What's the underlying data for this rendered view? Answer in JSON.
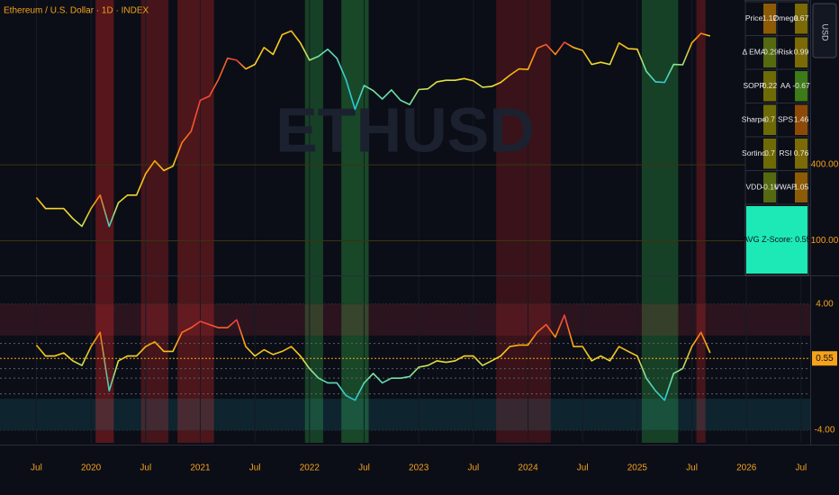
{
  "header": {
    "currency_button": "USD"
  },
  "chart_data": [
    {
      "type": "line",
      "title": "Ethereum / U.S. Dollar · 1D · INDEX",
      "watermark": "ETHUSD",
      "log_scale": true,
      "x": [
        "2019-07",
        "2019-08",
        "2019-09",
        "2019-10",
        "2019-11",
        "2019-12",
        "2020-01",
        "2020-02",
        "2020-03",
        "2020-04",
        "2020-05",
        "2020-06",
        "2020-07",
        "2020-08",
        "2020-09",
        "2020-10",
        "2020-11",
        "2020-12",
        "2021-01",
        "2021-02",
        "2021-03",
        "2021-04",
        "2021-05",
        "2021-06",
        "2021-07",
        "2021-08",
        "2021-09",
        "2021-10",
        "2021-11",
        "2021-12",
        "2022-01",
        "2022-02",
        "2022-03",
        "2022-04",
        "2022-05",
        "2022-06",
        "2022-07",
        "2022-08",
        "2022-09",
        "2022-10",
        "2022-11",
        "2022-12",
        "2023-01",
        "2023-02",
        "2023-03",
        "2023-04",
        "2023-05",
        "2023-06",
        "2023-07",
        "2023-08",
        "2023-09",
        "2023-10",
        "2023-11",
        "2023-12",
        "2024-01",
        "2024-02",
        "2024-03",
        "2024-04",
        "2024-05",
        "2024-06",
        "2024-07",
        "2024-08",
        "2024-09",
        "2024-10",
        "2024-11",
        "2024-12",
        "2025-01",
        "2025-02",
        "2025-03",
        "2025-04",
        "2025-05",
        "2025-06",
        "2025-07",
        "2025-08",
        "2025-09"
      ],
      "values": [
        220,
        180,
        180,
        180,
        150,
        130,
        180,
        230,
        130,
        200,
        230,
        230,
        340,
        430,
        360,
        390,
        600,
        740,
        1300,
        1400,
        1900,
        2800,
        2700,
        2300,
        2500,
        3400,
        3000,
        4300,
        4600,
        3700,
        2700,
        2900,
        3300,
        2800,
        1900,
        1100,
        1700,
        1550,
        1330,
        1570,
        1300,
        1200,
        1580,
        1600,
        1820,
        1870,
        1870,
        1930,
        1850,
        1650,
        1670,
        1800,
        2050,
        2300,
        2280,
        3350,
        3600,
        3000,
        3750,
        3400,
        3230,
        2500,
        2600,
        2500,
        3700,
        3330,
        3300,
        2200,
        1820,
        1800,
        2500,
        2480,
        3700,
        4400,
        4200
      ],
      "xlim": [
        "2019-03",
        "2026-08"
      ],
      "ylim": [
        54,
        8100
      ],
      "yticks": [
        {
          "value": 100,
          "label": "100.00"
        },
        {
          "value": 400,
          "label": "400.00"
        }
      ],
      "grid_color": "#3a3410",
      "shaded_ranges": [
        {
          "from": "2020-02",
          "to": "2020-03",
          "color": "rgba(178,34,34,0.45)"
        },
        {
          "from": "2020-07",
          "to": "2020-09",
          "color": "rgba(178,34,34,0.35)"
        },
        {
          "from": "2020-11",
          "to": "2021-02",
          "color": "rgba(178,34,34,0.40)"
        },
        {
          "from": "2022-01",
          "to": "2022-02",
          "color": "rgba(46,160,67,0.35)"
        },
        {
          "from": "2022-05",
          "to": "2022-07",
          "color": "rgba(46,160,67,0.40)"
        },
        {
          "from": "2023-10",
          "to": "2024-03",
          "color": "rgba(178,34,34,0.28)"
        },
        {
          "from": "2025-02",
          "to": "2025-05",
          "color": "rgba(46,160,67,0.35)"
        },
        {
          "from": "2025-08",
          "to": "2025-08",
          "color": "rgba(178,34,34,0.35)"
        }
      ]
    },
    {
      "type": "line",
      "x": [
        "2019-07",
        "2019-08",
        "2019-09",
        "2019-10",
        "2019-11",
        "2019-12",
        "2020-01",
        "2020-02",
        "2020-03",
        "2020-04",
        "2020-05",
        "2020-06",
        "2020-07",
        "2020-08",
        "2020-09",
        "2020-10",
        "2020-11",
        "2020-12",
        "2021-01",
        "2021-02",
        "2021-03",
        "2021-04",
        "2021-05",
        "2021-06",
        "2021-07",
        "2021-08",
        "2021-09",
        "2021-10",
        "2021-11",
        "2021-12",
        "2022-01",
        "2022-02",
        "2022-03",
        "2022-04",
        "2022-05",
        "2022-06",
        "2022-07",
        "2022-08",
        "2022-09",
        "2022-10",
        "2022-11",
        "2022-12",
        "2023-01",
        "2023-02",
        "2023-03",
        "2023-04",
        "2023-05",
        "2023-06",
        "2023-07",
        "2023-08",
        "2023-09",
        "2023-10",
        "2023-11",
        "2023-12",
        "2024-01",
        "2024-02",
        "2024-03",
        "2024-04",
        "2024-05",
        "2024-06",
        "2024-07",
        "2024-08",
        "2024-09",
        "2024-10",
        "2024-11",
        "2024-12",
        "2025-01",
        "2025-02",
        "2025-03",
        "2025-04",
        "2025-05",
        "2025-06",
        "2025-07",
        "2025-08",
        "2025-09"
      ],
      "values": [
        1.4,
        0.7,
        0.7,
        0.9,
        0.4,
        0.1,
        1.3,
        2.2,
        -1.5,
        0.4,
        0.7,
        0.7,
        1.3,
        1.6,
        1.0,
        1.0,
        2.2,
        2.5,
        2.9,
        2.7,
        2.5,
        2.5,
        3.0,
        1.3,
        0.7,
        1.1,
        0.8,
        1.0,
        1.3,
        0.7,
        -0.1,
        -0.7,
        -1.0,
        -1.0,
        -1.8,
        -2.1,
        -1.0,
        -0.4,
        -1.0,
        -0.7,
        -0.7,
        -0.6,
        0.0,
        0.1,
        0.4,
        0.3,
        0.4,
        0.7,
        0.7,
        0.1,
        0.4,
        0.7,
        1.3,
        1.4,
        1.4,
        2.2,
        2.7,
        1.9,
        3.3,
        1.3,
        1.3,
        0.4,
        0.7,
        0.4,
        1.3,
        1.0,
        0.7,
        -0.7,
        -1.5,
        -2.1,
        -0.4,
        -0.1,
        1.3,
        2.2,
        0.9
      ],
      "xlim": [
        "2019-03",
        "2026-08"
      ],
      "ylim": [
        -4.8,
        5.7
      ],
      "yticks": [
        {
          "value": 4,
          "label": "4.00"
        },
        {
          "value": -4,
          "label": "-4.00"
        }
      ],
      "levels": [
        1.5,
        -0.1,
        -0.7,
        -1.7
      ],
      "current": {
        "value": 0.55,
        "label": "0.55"
      },
      "upper_zone": [
        2,
        4
      ],
      "lower_zone": [
        -4,
        -2
      ],
      "xticks": [
        {
          "value": "2019-07",
          "label": "Jul"
        },
        {
          "value": "2020-01",
          "label": "2020"
        },
        {
          "value": "2020-07",
          "label": "Jul"
        },
        {
          "value": "2021-01",
          "label": "2021"
        },
        {
          "value": "2021-07",
          "label": "Jul"
        },
        {
          "value": "2022-01",
          "label": "2022"
        },
        {
          "value": "2022-07",
          "label": "Jul"
        },
        {
          "value": "2023-01",
          "label": "2023"
        },
        {
          "value": "2023-07",
          "label": "Jul"
        },
        {
          "value": "2024-01",
          "label": "2024"
        },
        {
          "value": "2024-07",
          "label": "Jul"
        },
        {
          "value": "2025-01",
          "label": "2025"
        },
        {
          "value": "2025-07",
          "label": "Jul"
        },
        {
          "value": "2026-01",
          "label": "2026"
        },
        {
          "value": "2026-07",
          "label": "Jul"
        }
      ]
    }
  ],
  "table": {
    "rows": [
      [
        {
          "label": "Price",
          "value": 1.12,
          "color": "#8d5b06"
        },
        {
          "label": "Omega",
          "value": 0.67,
          "color": "#7b6a05"
        }
      ],
      [
        {
          "label": "Δ EMA",
          "value": -0.29,
          "color": "#556a10"
        },
        {
          "label": "Risk",
          "value": 0.99,
          "color": "#7b6a05"
        }
      ],
      [
        {
          "label": "SOPR",
          "value": 0.22,
          "color": "#6e6a06"
        },
        {
          "label": "AA",
          "value": -0.67,
          "color": "#3d7a18"
        }
      ],
      [
        {
          "label": "Sharpe",
          "value": 0.7,
          "color": "#6e6a06"
        },
        {
          "label": "SPS",
          "value": 1.46,
          "color": "#8d4a06"
        }
      ],
      [
        {
          "label": "Sortino",
          "value": 0.7,
          "color": "#6e6a06"
        },
        {
          "label": "RSI",
          "value": 0.76,
          "color": "#7b6a05"
        }
      ],
      [
        {
          "label": "VDD",
          "value": -0.16,
          "color": "#556a10"
        },
        {
          "label": "VWAP",
          "value": 1.05,
          "color": "#8d5b06"
        }
      ]
    ],
    "footer": "AVG Z-Score: 0.55",
    "footer_color": "#1de9b6"
  }
}
